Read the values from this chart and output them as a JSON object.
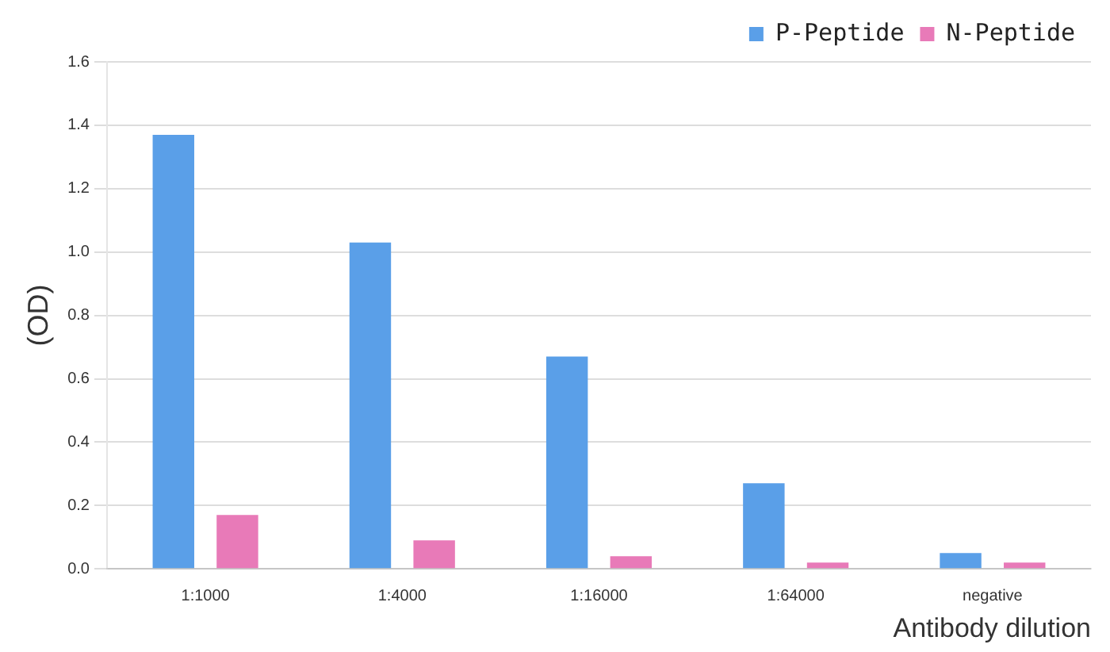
{
  "chart_data": {
    "type": "bar",
    "categories": [
      "1:1000",
      "1:4000",
      "1:16000",
      "1:64000",
      "negative"
    ],
    "series": [
      {
        "name": "P-Peptide",
        "color": "#5a9fe8",
        "values": [
          1.37,
          1.03,
          0.67,
          0.27,
          0.05
        ]
      },
      {
        "name": "N-Peptide",
        "color": "#e87ab8",
        "values": [
          0.17,
          0.09,
          0.04,
          0.02,
          0.02
        ]
      }
    ],
    "ylabel": "(OD)",
    "xlabel": "Antibody dilution",
    "ylim": [
      0,
      1.6
    ],
    "yticks": [
      {
        "value": 0,
        "label": "0.0"
      },
      0.2,
      0.4,
      0.6,
      0.8,
      {
        "value": 1,
        "label": "1.0"
      },
      1.2,
      1.4,
      1.6
    ],
    "grid": "y",
    "legend": "top right"
  }
}
